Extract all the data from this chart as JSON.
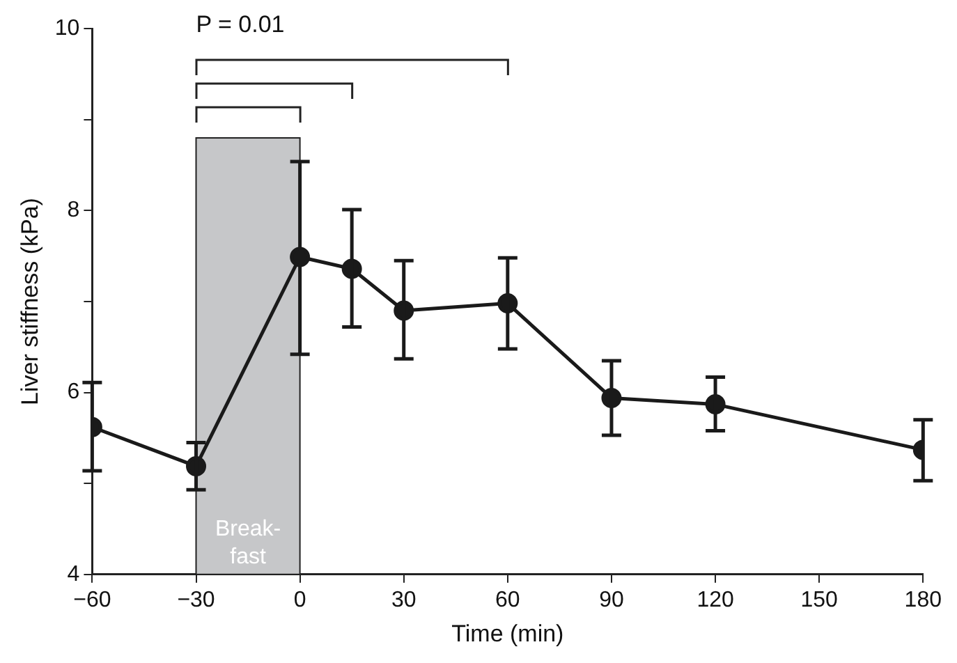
{
  "chart_data": {
    "type": "line",
    "xlabel": "Time (min)",
    "ylabel": "Liver stiffness (kPa)",
    "x": [
      -60,
      -30,
      0,
      15,
      30,
      60,
      90,
      120,
      180
    ],
    "series": [
      {
        "color": "#1a1a1a",
        "values": [
          5.62,
          5.19,
          7.49,
          7.36,
          6.9,
          6.98,
          5.94,
          5.87,
          5.37
        ],
        "errors": [
          [
            5.14,
            6.11
          ],
          [
            4.93,
            5.45
          ],
          [
            6.42,
            8.54
          ],
          [
            6.72,
            8.01
          ],
          [
            6.37,
            7.45
          ],
          [
            6.48,
            7.48
          ],
          [
            5.53,
            6.35
          ],
          [
            5.58,
            6.17
          ],
          [
            5.03,
            5.7
          ]
        ]
      }
    ],
    "xlim": [
      -60,
      180
    ],
    "xticks": [
      -60,
      -30,
      0,
      30,
      60,
      90,
      120,
      150,
      180
    ],
    "ylim": [
      4,
      10
    ],
    "yticks": [
      4,
      {
        "value": 5,
        "label": null
      },
      6,
      {
        "value": 7,
        "label": null
      },
      8,
      {
        "value": 9,
        "label": null
      },
      10
    ],
    "bands": [
      {
        "axis": "x",
        "from": -30,
        "to": 0,
        "label": "Break-fast",
        "color": "#c6c7c9"
      }
    ],
    "annotations": [
      "P = 0.01"
    ],
    "marker": "circle",
    "line_style": "solid",
    "grid": false,
    "legend": false
  }
}
